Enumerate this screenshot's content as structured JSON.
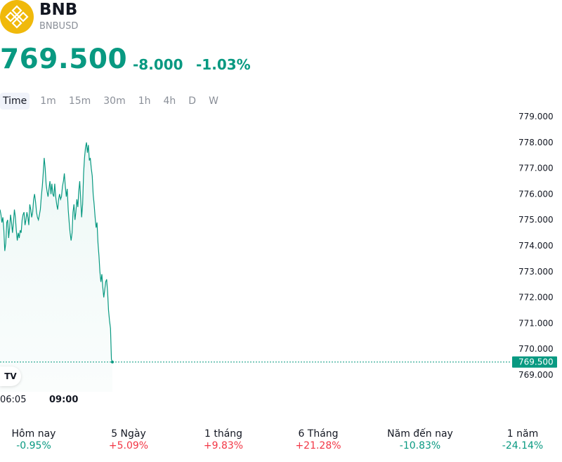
{
  "header": {
    "name": "BNB",
    "ticker": "BNBUSD",
    "price": "769.500",
    "change": "-8.000",
    "change_pct": "-1.03%"
  },
  "tabs": [
    "Time",
    "1m",
    "15m",
    "30m",
    "1h",
    "4h",
    "D",
    "W"
  ],
  "time_labels": [
    "06:05",
    "09:00"
  ],
  "performance": [
    {
      "label": "Hôm nay",
      "value": "-0.95%",
      "dir": "down"
    },
    {
      "label": "5 Ngày",
      "value": "+5.09%",
      "dir": "up"
    },
    {
      "label": "1 tháng",
      "value": "+9.83%",
      "dir": "up"
    },
    {
      "label": "6 Tháng",
      "value": "+21.28%",
      "dir": "up"
    },
    {
      "label": "Năm đến nay",
      "value": "-10.83%",
      "dir": "down"
    },
    {
      "label": "1 năm",
      "value": "-24.14%",
      "dir": "down"
    }
  ],
  "colors": {
    "accent": "#089981",
    "negative_perf": "#089981",
    "positive_perf": "#f23645",
    "logo": "#f0b90b"
  },
  "chart_data": {
    "type": "area",
    "ylim": [
      769.0,
      779.0
    ],
    "y_ticks": [
      "779.000",
      "778.000",
      "777.000",
      "776.000",
      "775.000",
      "774.000",
      "773.000",
      "772.000",
      "771.000",
      "770.000",
      "769.000"
    ],
    "last_price_label": "769.500",
    "last_value": 769.5,
    "grid": false,
    "values": [
      775.4,
      775.2,
      774.9,
      775.1,
      774.6,
      773.8,
      774.1,
      774.9,
      775.0,
      774.3,
      774.7,
      775.2,
      774.9,
      774.5,
      774.9,
      775.4,
      775.1,
      774.6,
      774.2,
      774.5,
      774.3,
      774.6,
      774.5,
      775.0,
      775.2,
      775.3,
      774.8,
      775.0,
      775.3,
      775.1,
      774.8,
      775.6,
      775.4,
      775.1,
      775.3,
      775.8,
      776.0,
      775.7,
      775.3,
      775.1,
      775.0,
      775.2,
      775.4,
      775.9,
      776.3,
      776.8,
      777.4,
      777.0,
      776.4,
      776.1,
      775.9,
      776.2,
      776.5,
      776.0,
      776.4,
      776.0,
      775.9,
      776.4,
      775.9,
      775.6,
      775.4,
      775.8,
      776.0,
      775.8,
      775.9,
      776.3,
      776.5,
      776.8,
      776.3,
      775.9,
      776.2,
      775.4,
      774.9,
      774.5,
      774.2,
      774.5,
      775.3,
      775.6,
      775.0,
      775.3,
      775.8,
      775.5,
      776.1,
      776.5,
      775.8,
      775.1,
      775.6,
      776.8,
      777.4,
      777.8,
      778.0,
      777.6,
      777.9,
      777.3,
      777.4,
      777.0,
      776.7,
      776.0,
      775.6,
      775.1,
      774.7,
      774.9,
      774.1,
      773.6,
      773.0,
      772.6,
      772.9,
      772.4,
      772.0,
      772.3,
      772.6,
      772.7,
      772.2,
      771.5,
      771.1,
      770.8,
      769.6,
      769.5
    ]
  }
}
